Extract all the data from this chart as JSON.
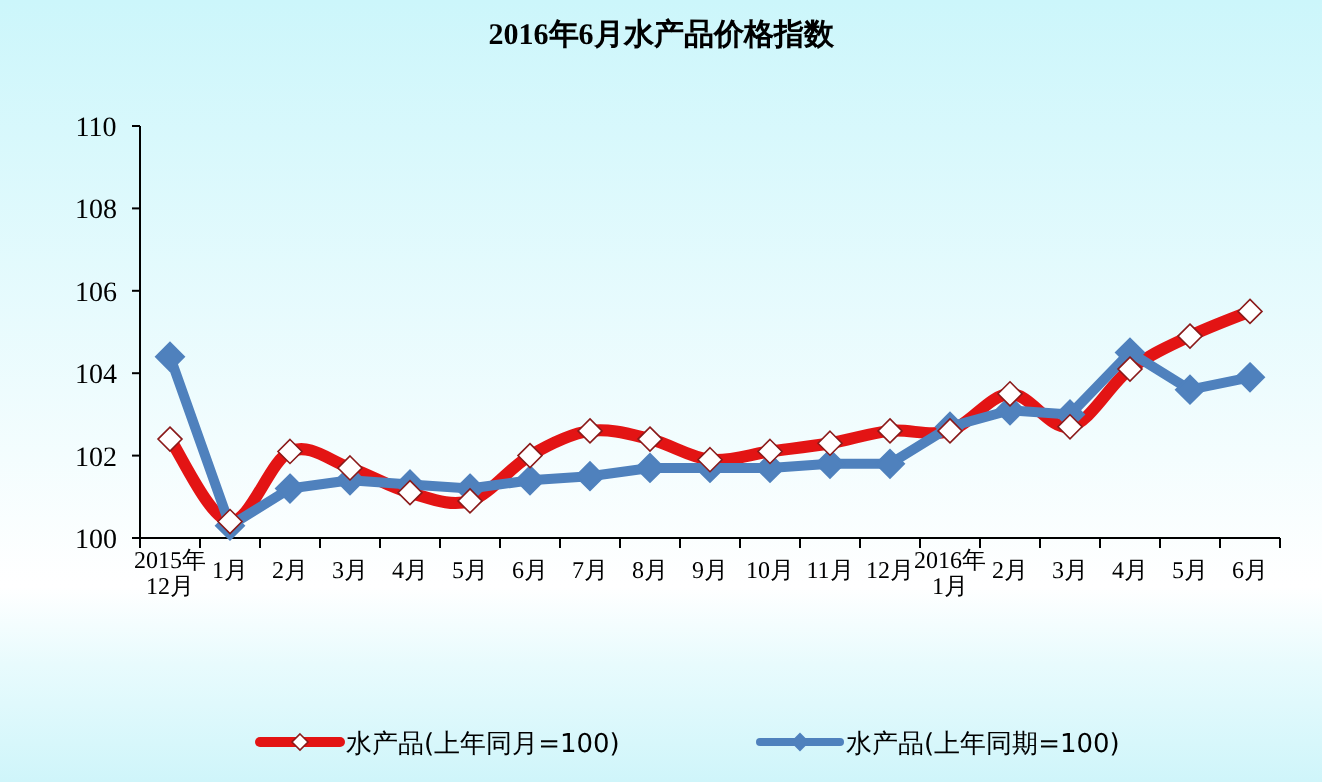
{
  "chart_data": {
    "type": "line",
    "title": "2016年6月水产品价格指数",
    "categories": [
      "2015年12月",
      "1月",
      "2月",
      "3月",
      "4月",
      "5月",
      "6月",
      "7月",
      "8月",
      "9月",
      "10月",
      "11月",
      "12月",
      "2016年1月",
      "2月",
      "3月",
      "4月",
      "5月",
      "6月"
    ],
    "series": [
      {
        "name": "水产品(上年同月=100)",
        "color": "#e31414",
        "values": [
          102.4,
          100.4,
          102.1,
          101.7,
          101.1,
          100.9,
          102.0,
          102.6,
          102.4,
          101.9,
          102.1,
          102.3,
          102.6,
          102.6,
          103.5,
          102.7,
          104.1,
          104.9,
          105.5
        ]
      },
      {
        "name": "水产品(上年同期=100)",
        "color": "#4f81bd",
        "values": [
          104.4,
          100.3,
          101.2,
          101.4,
          101.3,
          101.2,
          101.4,
          101.5,
          101.7,
          101.7,
          101.7,
          101.8,
          101.8,
          102.7,
          103.1,
          103.0,
          104.5,
          103.6,
          103.9
        ]
      }
    ],
    "ylim": [
      100,
      110
    ],
    "yticks": [
      100,
      102,
      104,
      106,
      108,
      110
    ],
    "marker": "diamond",
    "line_style": "solid",
    "grid": false,
    "legend": "bottom"
  }
}
